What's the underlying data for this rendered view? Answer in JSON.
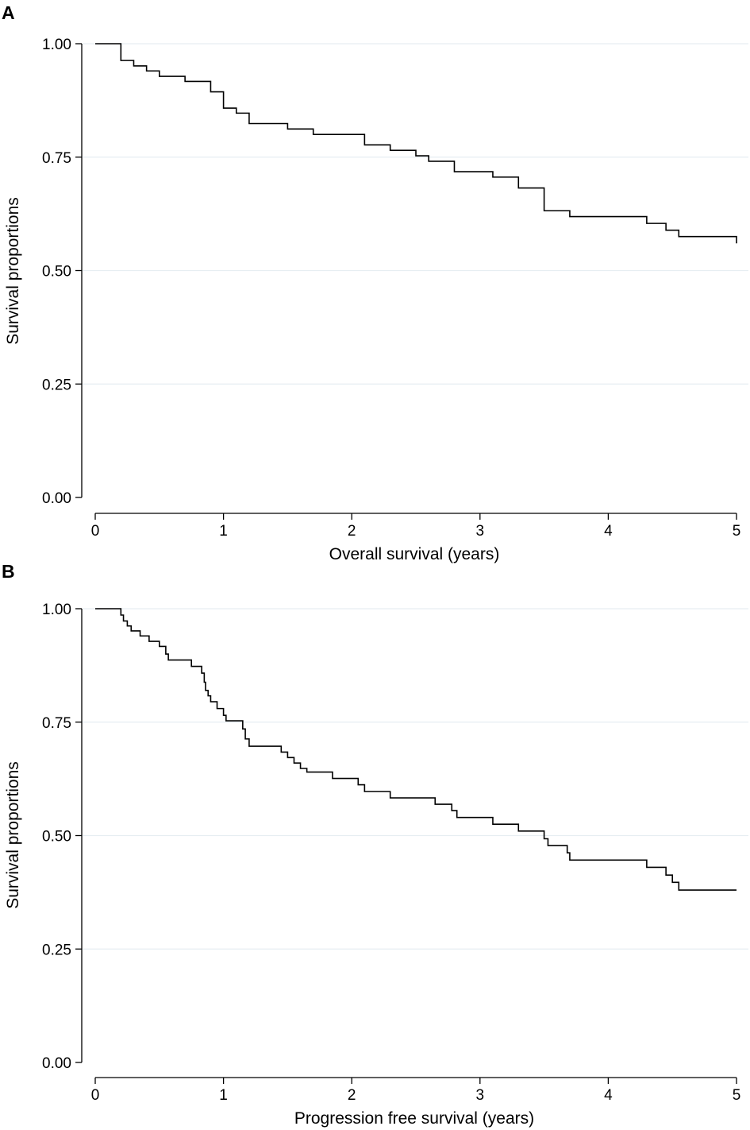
{
  "colors": {
    "background": "#ffffff",
    "gridline": "#e6eef2",
    "axis": "#000000",
    "curve": "#000000"
  },
  "chart_data": [
    {
      "panel": "A",
      "type": "line",
      "step": true,
      "xlabel": "Overall survival (years)",
      "ylabel": "Survival proportions",
      "xlim": [
        0,
        5
      ],
      "ylim": [
        0,
        1
      ],
      "xticks": [
        0,
        1,
        2,
        3,
        4,
        5
      ],
      "xtick_labels": [
        "0",
        "1",
        "2",
        "3",
        "4",
        "5"
      ],
      "yticks": [
        0,
        0.25,
        0.5,
        0.75,
        1
      ],
      "ytick_labels": [
        "0.00",
        "0.25",
        "0.50",
        "0.75",
        "1.00"
      ],
      "grid": "horizontal",
      "series": [
        {
          "name": "Overall survival",
          "points": [
            [
              0,
              1.0
            ],
            [
              0.2,
              0.963
            ],
            [
              0.3,
              0.951
            ],
            [
              0.4,
              0.94
            ],
            [
              0.5,
              0.928
            ],
            [
              0.7,
              0.917
            ],
            [
              0.9,
              0.894
            ],
            [
              1.0,
              0.858
            ],
            [
              1.1,
              0.847
            ],
            [
              1.2,
              0.824
            ],
            [
              1.5,
              0.812
            ],
            [
              1.7,
              0.8
            ],
            [
              2.1,
              0.777
            ],
            [
              2.3,
              0.765
            ],
            [
              2.5,
              0.753
            ],
            [
              2.6,
              0.741
            ],
            [
              2.8,
              0.718
            ],
            [
              3.1,
              0.706
            ],
            [
              3.3,
              0.682
            ],
            [
              3.5,
              0.632
            ],
            [
              3.7,
              0.619
            ],
            [
              4.3,
              0.604
            ],
            [
              4.45,
              0.589
            ],
            [
              4.55,
              0.575
            ],
            [
              5.0,
              0.56
            ]
          ]
        }
      ]
    },
    {
      "panel": "B",
      "type": "line",
      "step": true,
      "xlabel": "Progression free survival (years)",
      "ylabel": "Survival proportions",
      "xlim": [
        0,
        5
      ],
      "ylim": [
        0,
        1
      ],
      "xticks": [
        0,
        1,
        2,
        3,
        4,
        5
      ],
      "xtick_labels": [
        "0",
        "1",
        "2",
        "3",
        "4",
        "5"
      ],
      "yticks": [
        0,
        0.25,
        0.5,
        0.75,
        1
      ],
      "ytick_labels": [
        "0.00",
        "0.25",
        "0.50",
        "0.75",
        "1.00"
      ],
      "grid": "horizontal",
      "series": [
        {
          "name": "Progression free survival",
          "points": [
            [
              0,
              1.0
            ],
            [
              0.2,
              0.986
            ],
            [
              0.22,
              0.973
            ],
            [
              0.25,
              0.962
            ],
            [
              0.28,
              0.951
            ],
            [
              0.35,
              0.94
            ],
            [
              0.42,
              0.928
            ],
            [
              0.5,
              0.917
            ],
            [
              0.55,
              0.9
            ],
            [
              0.57,
              0.887
            ],
            [
              0.75,
              0.873
            ],
            [
              0.83,
              0.858
            ],
            [
              0.85,
              0.838
            ],
            [
              0.86,
              0.82
            ],
            [
              0.88,
              0.808
            ],
            [
              0.9,
              0.795
            ],
            [
              0.95,
              0.78
            ],
            [
              1.0,
              0.765
            ],
            [
              1.02,
              0.753
            ],
            [
              1.15,
              0.735
            ],
            [
              1.17,
              0.713
            ],
            [
              1.2,
              0.697
            ],
            [
              1.45,
              0.684
            ],
            [
              1.5,
              0.672
            ],
            [
              1.55,
              0.66
            ],
            [
              1.6,
              0.648
            ],
            [
              1.65,
              0.64
            ],
            [
              1.85,
              0.626
            ],
            [
              2.05,
              0.612
            ],
            [
              2.1,
              0.597
            ],
            [
              2.3,
              0.583
            ],
            [
              2.65,
              0.569
            ],
            [
              2.78,
              0.555
            ],
            [
              2.82,
              0.54
            ],
            [
              3.1,
              0.525
            ],
            [
              3.3,
              0.51
            ],
            [
              3.5,
              0.493
            ],
            [
              3.53,
              0.478
            ],
            [
              3.68,
              0.462
            ],
            [
              3.7,
              0.446
            ],
            [
              4.3,
              0.43
            ],
            [
              4.45,
              0.413
            ],
            [
              4.5,
              0.397
            ],
            [
              4.55,
              0.38
            ],
            [
              5.0,
              0.38
            ]
          ]
        }
      ]
    }
  ]
}
